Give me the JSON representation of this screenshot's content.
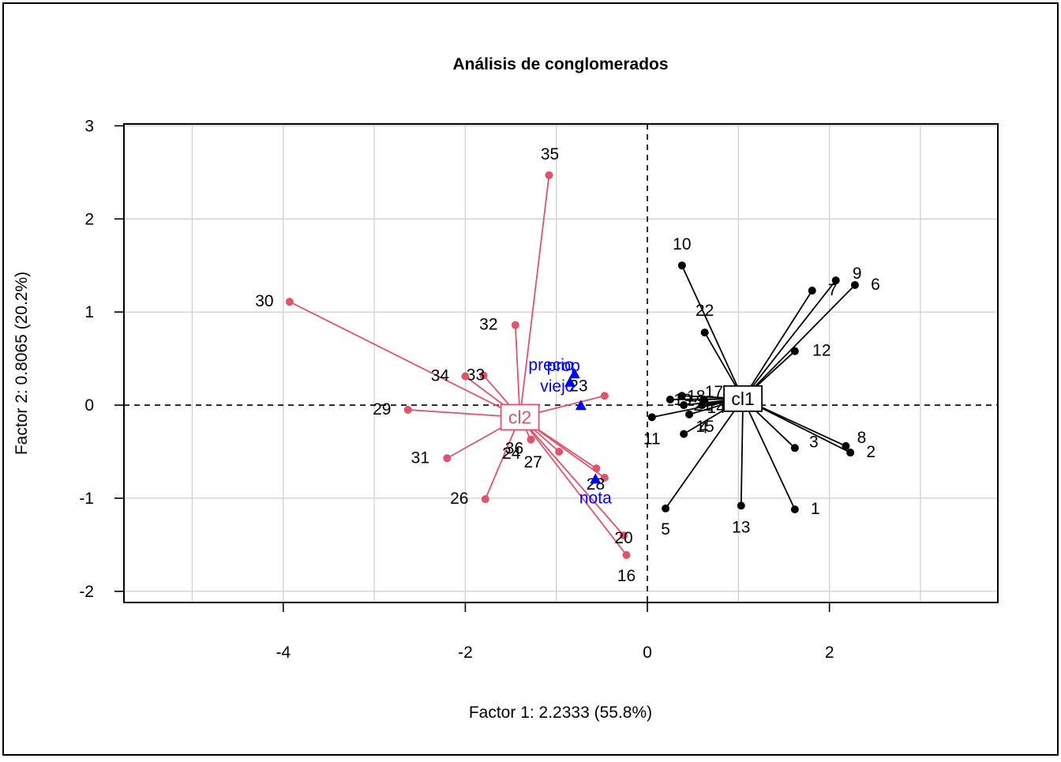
{
  "chart_data": {
    "type": "scatter",
    "title": "Análisis de conglomerados",
    "xlabel": "Factor 1: 2.2333 (55.8%)",
    "ylabel": "Factor 2: 0.8065 (20.2%)",
    "xlim": [
      -5.75,
      3.85
    ],
    "ylim": [
      -2.12,
      3.02
    ],
    "x_ticks": [
      -4,
      -2,
      0,
      2
    ],
    "y_ticks": [
      -2,
      -1,
      0,
      1,
      2,
      3
    ],
    "grid": true,
    "zero_lines": true,
    "colors": {
      "cl1": "#000000",
      "cl2": "#DF536B",
      "variables": "#0000FF",
      "grid": "#D3D3D3"
    },
    "clusters": [
      {
        "name": "cl1",
        "color": "#000000",
        "centroid": {
          "x": 1.05,
          "y": 0.07
        },
        "points": [
          {
            "label": "1",
            "x": 1.62,
            "y": -1.12
          },
          {
            "label": "2",
            "x": 2.23,
            "y": -0.51
          },
          {
            "label": "3",
            "x": 1.62,
            "y": -0.46
          },
          {
            "label": "4",
            "x": 0.4,
            "y": -0.31
          },
          {
            "label": "5",
            "x": 0.2,
            "y": -1.11
          },
          {
            "label": "6",
            "x": 2.28,
            "y": 1.29
          },
          {
            "label": "7",
            "x": 1.81,
            "y": 1.23
          },
          {
            "label": "8",
            "x": 2.18,
            "y": -0.44
          },
          {
            "label": "9",
            "x": 2.07,
            "y": 1.34
          },
          {
            "label": "10",
            "x": 0.38,
            "y": 1.5
          },
          {
            "label": "11",
            "x": 0.05,
            "y": -0.13
          },
          {
            "label": "12",
            "x": 1.62,
            "y": 0.58
          },
          {
            "label": "13",
            "x": 1.03,
            "y": -1.08
          },
          {
            "label": "14",
            "x": 0.6,
            "y": 0.0
          },
          {
            "label": "15",
            "x": 0.46,
            "y": -0.1
          },
          {
            "label": "17",
            "x": 0.62,
            "y": 0.06
          },
          {
            "label": "18",
            "x": 0.38,
            "y": 0.1
          },
          {
            "label": "19",
            "x": 0.25,
            "y": 0.06
          },
          {
            "label": "21",
            "x": 0.4,
            "y": 0.0
          },
          {
            "label": "22",
            "x": 0.63,
            "y": 0.78
          },
          {
            "label": "25",
            "x": 1.12,
            "y": 0.07
          }
        ]
      },
      {
        "name": "cl2",
        "color": "#DF536B",
        "centroid": {
          "x": -1.4,
          "y": -0.13
        },
        "points": [
          {
            "label": "16",
            "x": -0.23,
            "y": -1.61
          },
          {
            "label": "20",
            "x": -0.26,
            "y": -1.4
          },
          {
            "label": "23",
            "x": -0.47,
            "y": 0.1
          },
          {
            "label": "24",
            "x": -0.47,
            "y": -0.78
          },
          {
            "label": "26",
            "x": -1.78,
            "y": -1.01
          },
          {
            "label": "27",
            "x": -0.97,
            "y": -0.5
          },
          {
            "label": "28",
            "x": -0.56,
            "y": -0.68
          },
          {
            "label": "29",
            "x": -2.63,
            "y": -0.05
          },
          {
            "label": "30",
            "x": -3.93,
            "y": 1.11
          },
          {
            "label": "31",
            "x": -2.2,
            "y": -0.57
          },
          {
            "label": "32",
            "x": -1.45,
            "y": 0.86
          },
          {
            "label": "33",
            "x": -1.8,
            "y": 0.32
          },
          {
            "label": "34",
            "x": -2.0,
            "y": 0.31
          },
          {
            "label": "35",
            "x": -1.08,
            "y": 2.47
          },
          {
            "label": "36",
            "x": -1.28,
            "y": -0.37
          }
        ]
      }
    ],
    "variables": [
      {
        "label": "prop",
        "x": -0.8,
        "y": 0.33
      },
      {
        "label": "precio",
        "x": -0.85,
        "y": 0.24
      },
      {
        "label": "viejo",
        "x": -0.73,
        "y": -0.01
      },
      {
        "label": "nota",
        "x": -0.57,
        "y": -0.8
      }
    ]
  }
}
